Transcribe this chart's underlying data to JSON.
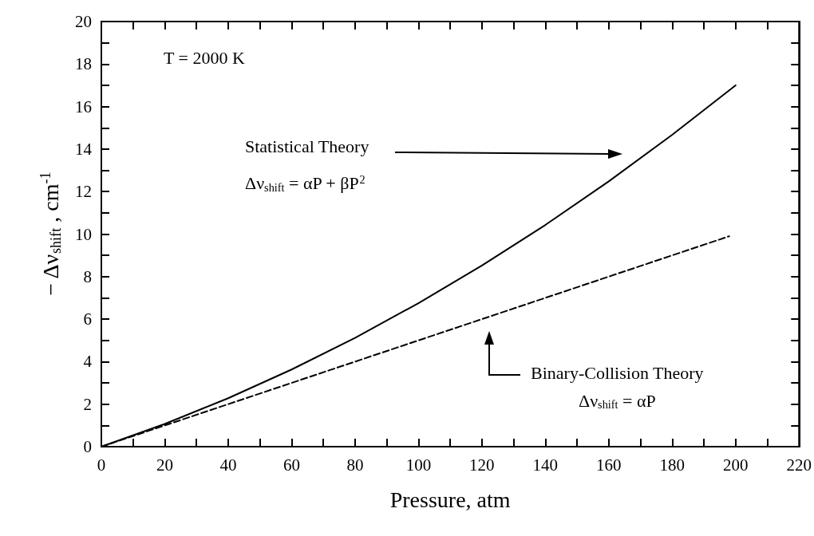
{
  "chart_data": {
    "type": "line",
    "xlabel": "Pressure, atm",
    "ylabel": "− Δν$_{shift}$ , cm$^{-1}$",
    "xlim": [
      0,
      220
    ],
    "xticks": [
      0,
      20,
      40,
      60,
      80,
      100,
      120,
      140,
      160,
      180,
      200,
      220
    ],
    "ylim": [
      0,
      20
    ],
    "yticks": [
      0,
      2,
      4,
      6,
      8,
      10,
      12,
      14,
      16,
      18,
      20
    ],
    "grid": false,
    "marker": "none",
    "series": [
      {
        "color": "#000000",
        "line_style": "solid",
        "x": [
          0,
          20,
          40,
          60,
          80,
          100,
          120,
          140,
          160,
          180,
          200
        ],
        "values": [
          0,
          1.07,
          2.28,
          3.63,
          5.12,
          6.75,
          8.52,
          10.43,
          12.48,
          14.67,
          17.0
        ]
      },
      {
        "color": "#000000",
        "line_style": "dashed",
        "x": [
          0,
          198
        ],
        "values": [
          0,
          9.9
        ]
      }
    ],
    "annotations": [
      "T = 2000 K",
      "Statistical Theory",
      "Δν$_{shift}$ = αP + βP$^{2}$",
      "Binary-Collision Theory",
      "Δν$_{shift}$ = αP"
    ]
  }
}
